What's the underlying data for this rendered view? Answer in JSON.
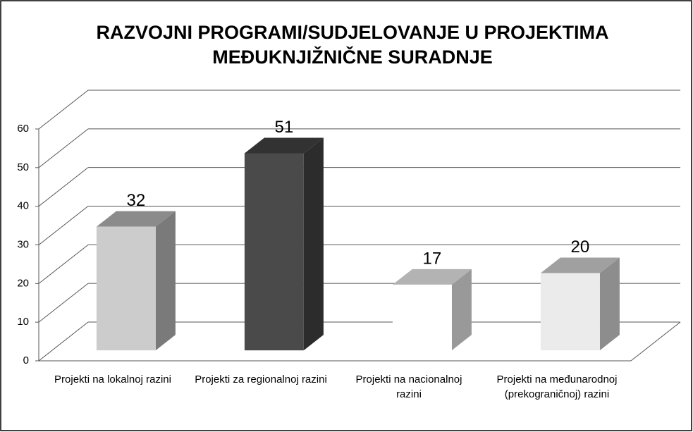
{
  "chart_data": {
    "type": "bar3d",
    "title": [
      "RAZVOJNI PROGRAMI/SUDJELOVANJE U PROJEKTIMA",
      "MEĐUKNJIŽNIČNE SURADNJE"
    ],
    "categories": [
      "Projekti na lokalnoj razini",
      "Projekti za regionalnoj razini",
      "Projekti na nacionalnoj razini",
      "Projekti na međunarodnoj (prekograničnoj) razini"
    ],
    "values": [
      32,
      51,
      17,
      20
    ],
    "colors": [
      "#cccccc",
      "#4a4a4a",
      "#ffffff",
      "#ebebeb"
    ],
    "ylim": [
      0,
      60
    ],
    "yticks": [
      0,
      10,
      20,
      30,
      40,
      50,
      60
    ],
    "grid": true
  }
}
